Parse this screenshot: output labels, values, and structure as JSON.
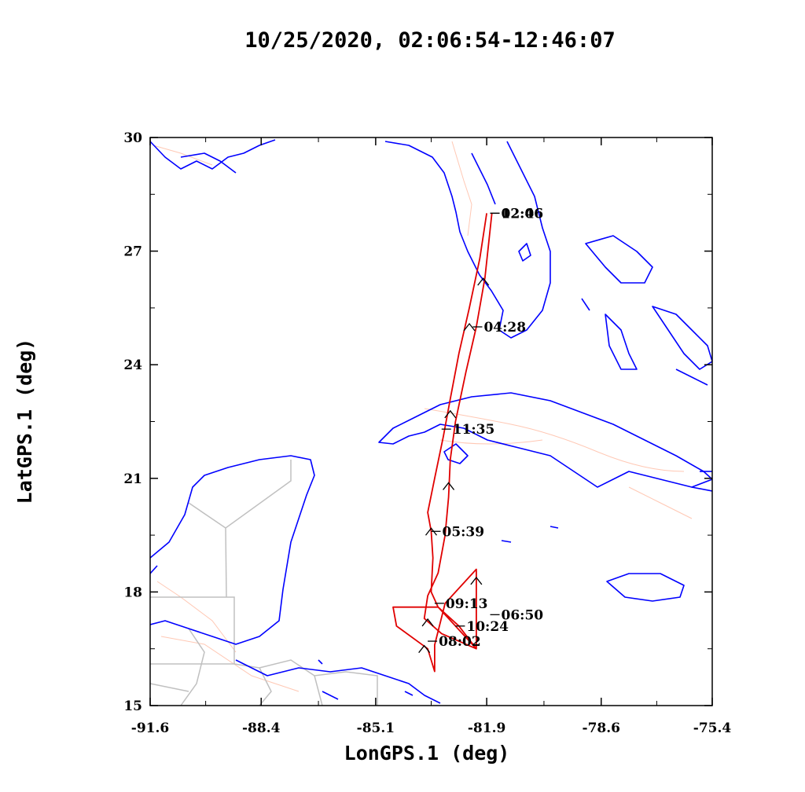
{
  "title": "10/25/2020, 02:06:54-12:46:07",
  "x_axis": {
    "label": "LonGPS.1 (deg)",
    "ticks": [
      "-91.6",
      "-88.4",
      "-85.1",
      "-81.9",
      "-78.6",
      "-75.4"
    ]
  },
  "y_axis": {
    "label": "LatGPS.1 (deg)",
    "ticks": [
      "30",
      "27",
      "24",
      "21",
      "18",
      "15"
    ]
  },
  "colors": {
    "track": "#e00000",
    "coast": "#0000ff",
    "border": "#c0c0c0",
    "river": "#ffc8b4"
  },
  "time_labels": [
    {
      "text": "02:06",
      "lon": -81.8,
      "lat": 28.0
    },
    {
      "text": "12:46",
      "lon": -81.8,
      "lat": 28.0
    },
    {
      "text": "04:28",
      "lon": -82.3,
      "lat": 25.0
    },
    {
      "text": "11:35",
      "lon": -83.2,
      "lat": 22.3
    },
    {
      "text": "05:39",
      "lon": -83.5,
      "lat": 19.6
    },
    {
      "text": "09:13",
      "lon": -83.4,
      "lat": 17.7
    },
    {
      "text": "06:50",
      "lon": -81.8,
      "lat": 17.4
    },
    {
      "text": "10:24",
      "lon": -82.8,
      "lat": 17.1
    },
    {
      "text": "08:02",
      "lon": -83.6,
      "lat": 16.7
    }
  ],
  "chart_data": {
    "type": "line",
    "title": "10/25/2020, 02:06:54-12:46:07",
    "xlabel": "LonGPS.1 (deg)",
    "ylabel": "LatGPS.1 (deg)",
    "xlim": [
      -91.6,
      -75.4
    ],
    "ylim": [
      15,
      30
    ],
    "grid": false,
    "series": [
      {
        "points": [
          [
            -81.9,
            28.0
          ],
          [
            -82.1,
            26.8
          ],
          [
            -82.4,
            25.5
          ],
          [
            -82.7,
            24.3
          ],
          [
            -82.95,
            23.1
          ],
          [
            -83.15,
            22.1
          ],
          [
            -83.4,
            21.0
          ],
          [
            -83.6,
            20.1
          ],
          [
            -83.5,
            19.6
          ],
          [
            -83.45,
            18.9
          ],
          [
            -83.5,
            18.0
          ],
          [
            -83.3,
            17.6
          ],
          [
            -82.7,
            17.1
          ],
          [
            -82.2,
            16.5
          ],
          [
            -82.2,
            18.6
          ],
          [
            -83.1,
            17.7
          ],
          [
            -83.4,
            16.6
          ],
          [
            -83.4,
            15.9
          ],
          [
            -83.6,
            16.5
          ],
          [
            -84.5,
            17.1
          ],
          [
            -84.6,
            17.6
          ],
          [
            -83.3,
            17.6
          ],
          [
            -82.6,
            16.9
          ],
          [
            -82.2,
            16.5
          ],
          [
            -83.2,
            16.9
          ],
          [
            -83.7,
            17.3
          ],
          [
            -83.6,
            17.9
          ],
          [
            -83.3,
            18.5
          ],
          [
            -83.1,
            19.5
          ],
          [
            -83.0,
            20.5
          ],
          [
            -82.95,
            21.5
          ],
          [
            -82.8,
            22.5
          ],
          [
            -82.5,
            23.8
          ],
          [
            -82.2,
            25.0
          ],
          [
            -81.95,
            26.3
          ],
          [
            -81.75,
            28.0
          ]
        ]
      }
    ],
    "direction_markers": [
      {
        "lon": -82.0,
        "lat": 26.2
      },
      {
        "lon": -82.4,
        "lat": 25.0
      },
      {
        "lon": -82.95,
        "lat": 22.7
      },
      {
        "lon": -83.0,
        "lat": 20.8
      },
      {
        "lon": -83.5,
        "lat": 19.6
      },
      {
        "lon": -82.2,
        "lat": 18.3
      },
      {
        "lon": -83.6,
        "lat": 17.2
      },
      {
        "lon": -83.7,
        "lat": 16.5
      }
    ]
  }
}
